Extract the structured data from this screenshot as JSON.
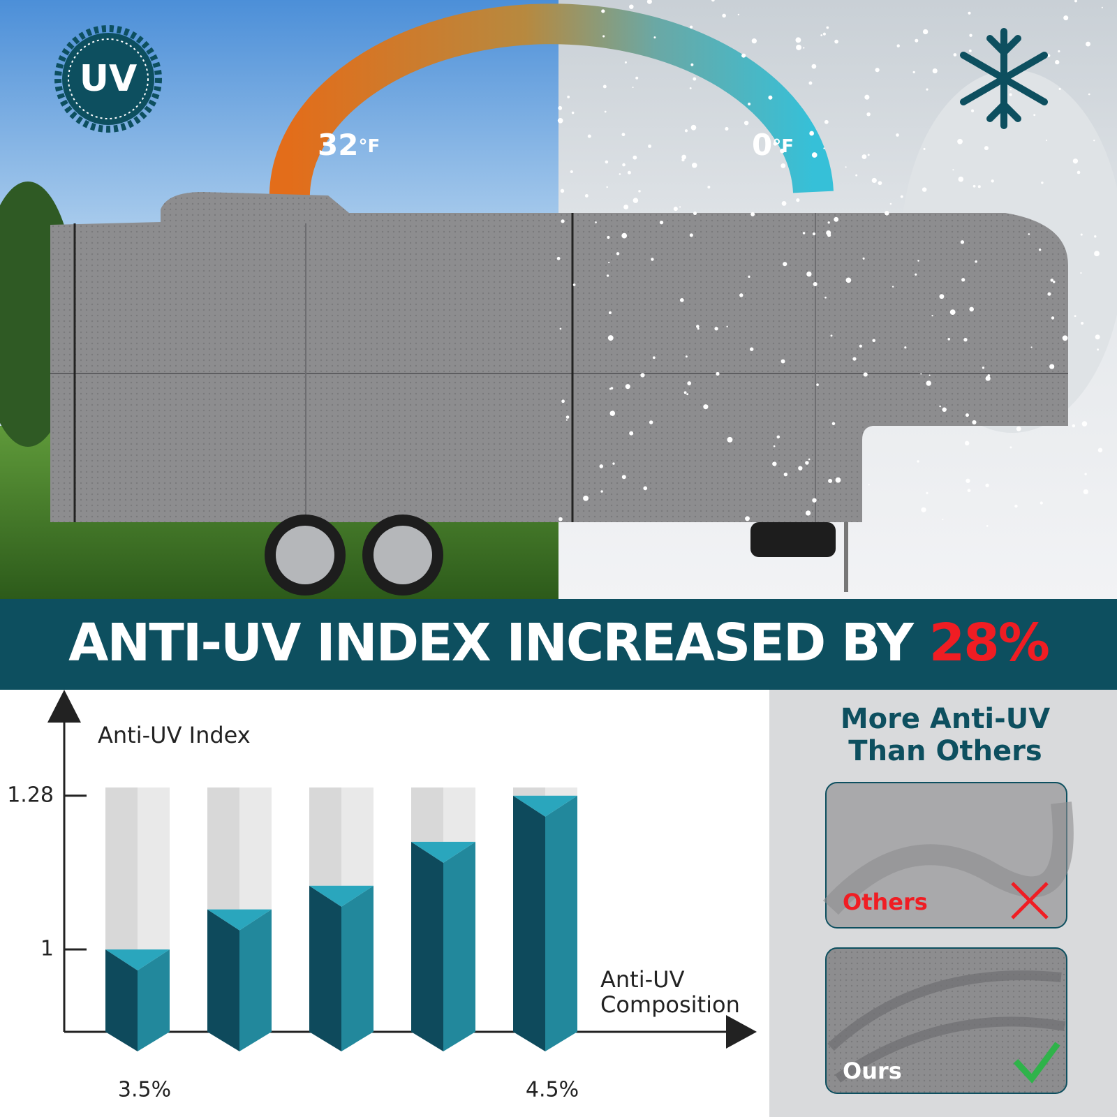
{
  "badge": "UV",
  "temperatures": [
    {
      "value": "32",
      "unit": "°F"
    },
    {
      "value": "0",
      "unit": "°F"
    }
  ],
  "banner": {
    "text": "ANTI-UV INDEX INCREASED BY",
    "highlight": "28%"
  },
  "chart_data": {
    "type": "bar",
    "y_label": "Anti-UV Index",
    "x_label": [
      "Anti-UV",
      "Composition"
    ],
    "categories": [
      "3.5%",
      null,
      null,
      null,
      "4.5%"
    ],
    "values": [
      1.0,
      1.073,
      1.116,
      1.196,
      1.28
    ],
    "ylim": [
      0.85,
      1.445
    ],
    "yticks": [
      1,
      1.28
    ]
  },
  "comparison": {
    "title": [
      "More Anti-UV",
      "Than Others"
    ],
    "others": "Others",
    "ours": "Ours"
  }
}
